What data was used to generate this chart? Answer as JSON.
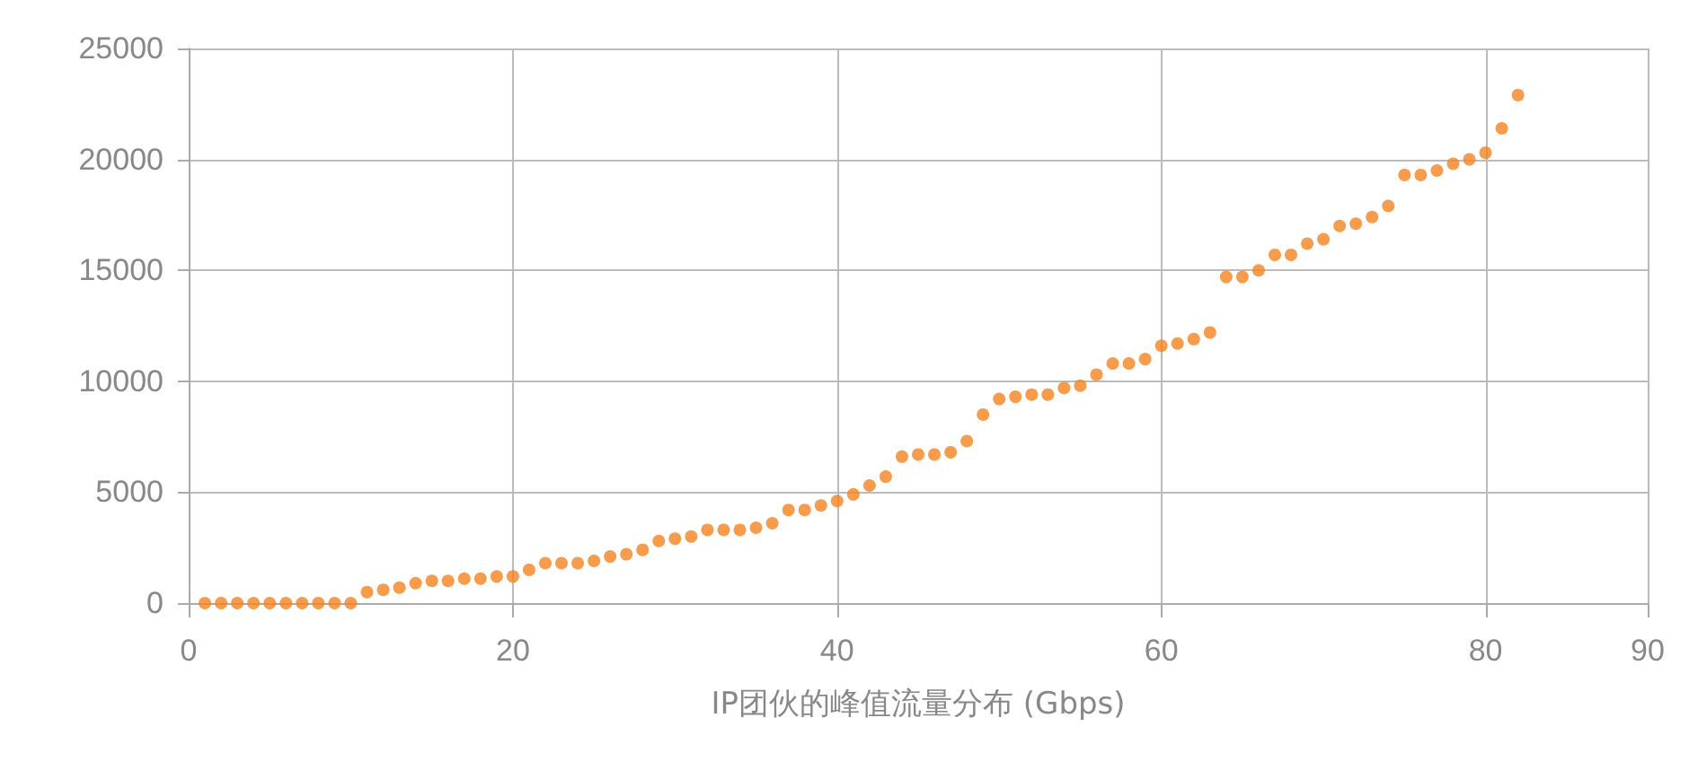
{
  "chart_data": {
    "type": "scatter",
    "xlabel": "IP团伙的峰值流量分布 (Gbps)",
    "x": [
      1,
      2,
      3,
      4,
      5,
      6,
      7,
      8,
      9,
      10,
      11,
      12,
      13,
      14,
      15,
      16,
      17,
      18,
      19,
      20,
      21,
      22,
      23,
      24,
      25,
      26,
      27,
      28,
      29,
      30,
      31,
      32,
      33,
      34,
      35,
      36,
      37,
      38,
      39,
      40,
      41,
      42,
      43,
      44,
      45,
      46,
      47,
      48,
      49,
      50,
      51,
      52,
      53,
      54,
      55,
      56,
      57,
      58,
      59,
      60,
      61,
      62,
      63,
      64,
      65,
      66,
      67,
      68,
      69,
      70,
      71,
      72,
      73,
      74,
      75,
      76,
      77,
      78,
      79,
      80,
      81,
      82
    ],
    "series": [
      {
        "color": "#f5821f",
        "values": [
          0,
          0,
          0,
          0,
          0,
          0,
          0,
          0,
          0,
          0,
          500,
          600,
          700,
          900,
          1000,
          1000,
          1100,
          1100,
          1200,
          1200,
          1500,
          1800,
          1800,
          1800,
          1900,
          2100,
          2200,
          2400,
          2800,
          2900,
          3000,
          3300,
          3300,
          3300,
          3400,
          3600,
          4200,
          4200,
          4400,
          4600,
          4900,
          5300,
          5700,
          6600,
          6700,
          6700,
          6800,
          7300,
          8500,
          9200,
          9300,
          9400,
          9400,
          9700,
          9800,
          10300,
          10800,
          10800,
          11000,
          11600,
          11700,
          11900,
          12200,
          14700,
          14700,
          15000,
          15700,
          15700,
          16200,
          16400,
          17000,
          17100,
          17400,
          17900,
          19300,
          19300,
          19500,
          19800,
          20000,
          20300,
          21400,
          22900
        ]
      }
    ],
    "xlim": [
      0,
      90
    ],
    "xticks": [
      0,
      20,
      40,
      60,
      80,
      90
    ],
    "ylim": [
      0,
      25000
    ],
    "yticks": [
      0,
      5000,
      10000,
      15000,
      20000,
      25000
    ],
    "grid": true,
    "marker": "circle"
  }
}
